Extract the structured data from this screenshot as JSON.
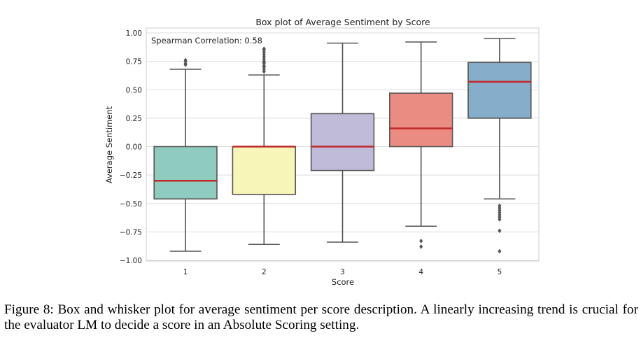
{
  "chart_data": {
    "type": "box",
    "title": "Box plot of Average Sentiment by Score",
    "xlabel": "Score",
    "ylabel": "Average Sentiment",
    "ylim": [
      -1.0,
      1.0
    ],
    "grid": true,
    "yticks": [
      1.0,
      0.75,
      0.5,
      0.25,
      0.0,
      -0.25,
      -0.5,
      -0.75,
      -1.0
    ],
    "ytick_labels": [
      "1.00",
      "0.75",
      "0.50",
      "0.25",
      "0.00",
      "−0.25",
      "−0.50",
      "−0.75",
      "−1.00"
    ],
    "categories": [
      "1",
      "2",
      "3",
      "4",
      "5"
    ],
    "annotation": "Spearman Correlation: 0.58",
    "boxes": [
      {
        "category": "1",
        "color": "#8fcbbf",
        "whisker_low": -0.92,
        "q1": -0.46,
        "median": -0.3,
        "q3": 0.0,
        "whisker_high": 0.68,
        "outliers": [
          0.72,
          0.73,
          0.75,
          0.76
        ]
      },
      {
        "category": "2",
        "color": "#f7f5b7",
        "whisker_low": -0.86,
        "q1": -0.42,
        "median": 0.0,
        "q3": 0.0,
        "whisker_high": 0.63,
        "outliers": [
          0.66,
          0.68,
          0.7,
          0.71,
          0.73,
          0.74,
          0.75,
          0.77,
          0.79,
          0.81,
          0.83,
          0.85,
          0.86
        ]
      },
      {
        "category": "3",
        "color": "#bfbbd8",
        "whisker_low": -0.84,
        "q1": -0.21,
        "median": 0.0,
        "q3": 0.29,
        "whisker_high": 0.91,
        "outliers": []
      },
      {
        "category": "4",
        "color": "#eb8c83",
        "whisker_low": -0.7,
        "q1": 0.0,
        "median": 0.16,
        "q3": 0.47,
        "whisker_high": 0.92,
        "outliers": [
          -0.83,
          -0.88
        ]
      },
      {
        "category": "5",
        "color": "#86aecb",
        "whisker_low": -0.46,
        "q1": 0.25,
        "median": 0.57,
        "q3": 0.74,
        "whisker_high": 0.95,
        "outliers": [
          -0.52,
          -0.54,
          -0.56,
          -0.58,
          -0.6,
          -0.62,
          -0.64,
          -0.74,
          -0.92
        ]
      }
    ],
    "median_color": "#c0282a",
    "box_edge_color": "#555555"
  },
  "caption": "Figure 8: Box and whisker plot for average sentiment per score description. A linearly increasing trend is crucial for the evaluator LM to decide a score in an Absolute Scoring setting."
}
